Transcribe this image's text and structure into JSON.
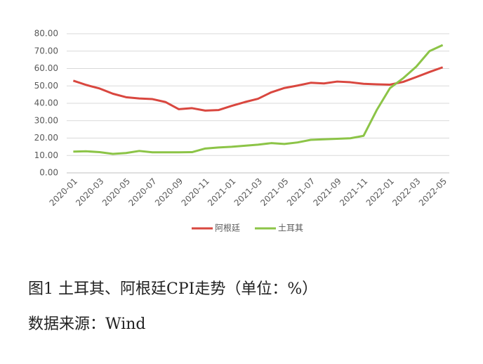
{
  "chart_data": {
    "type": "line",
    "categories": [
      "2020-01",
      null,
      "2020-03",
      null,
      "2020-05",
      null,
      "2020-07",
      null,
      "2020-09",
      null,
      "2020-11",
      null,
      "2021-01",
      null,
      "2021-03",
      null,
      "2021-05",
      null,
      "2021-07",
      null,
      "2021-09",
      null,
      "2021-11",
      null,
      "2022-01",
      null,
      "2022-03",
      null,
      "2022-05"
    ],
    "series": [
      {
        "name": "阿根廷",
        "color": "#d9473f",
        "values": [
          53,
          50.5,
          48.5,
          45.5,
          43.5,
          42.8,
          42.4,
          40.7,
          36.6,
          37.2,
          35.8,
          36.1,
          38.5,
          40.7,
          42.6,
          46.3,
          48.8,
          50.2,
          51.8,
          51.4,
          52.5,
          52.1,
          51.2,
          50.9,
          50.7,
          52.3,
          55.1,
          58.0,
          60.7
        ]
      },
      {
        "name": "土耳其",
        "color": "#8cc447",
        "values": [
          12.2,
          12.4,
          11.9,
          10.9,
          11.4,
          12.6,
          11.8,
          11.8,
          11.8,
          11.9,
          14.0,
          14.6,
          15.0,
          15.6,
          16.2,
          17.1,
          16.6,
          17.5,
          19.0,
          19.3,
          19.6,
          19.9,
          21.3,
          36.1,
          48.7,
          54.4,
          61.1,
          70.0,
          73.5
        ]
      }
    ],
    "ylim": [
      0,
      80
    ],
    "yticks": [
      {
        "value": 0,
        "label": "0.00"
      },
      {
        "value": 10,
        "label": "10.00"
      },
      {
        "value": 20,
        "label": "20.00"
      },
      {
        "value": 30,
        "label": "30.00"
      },
      {
        "value": 40,
        "label": "40.00"
      },
      {
        "value": 50,
        "label": "50.00"
      },
      {
        "value": 60,
        "label": "60.00"
      },
      {
        "value": 70,
        "label": "70.00"
      },
      {
        "value": 80,
        "label": "80.00"
      }
    ],
    "grid": true,
    "legend": "bottom"
  },
  "caption": "图1 土耳其、阿根廷CPI走势（单位：%）",
  "source": "数据来源：Wind"
}
